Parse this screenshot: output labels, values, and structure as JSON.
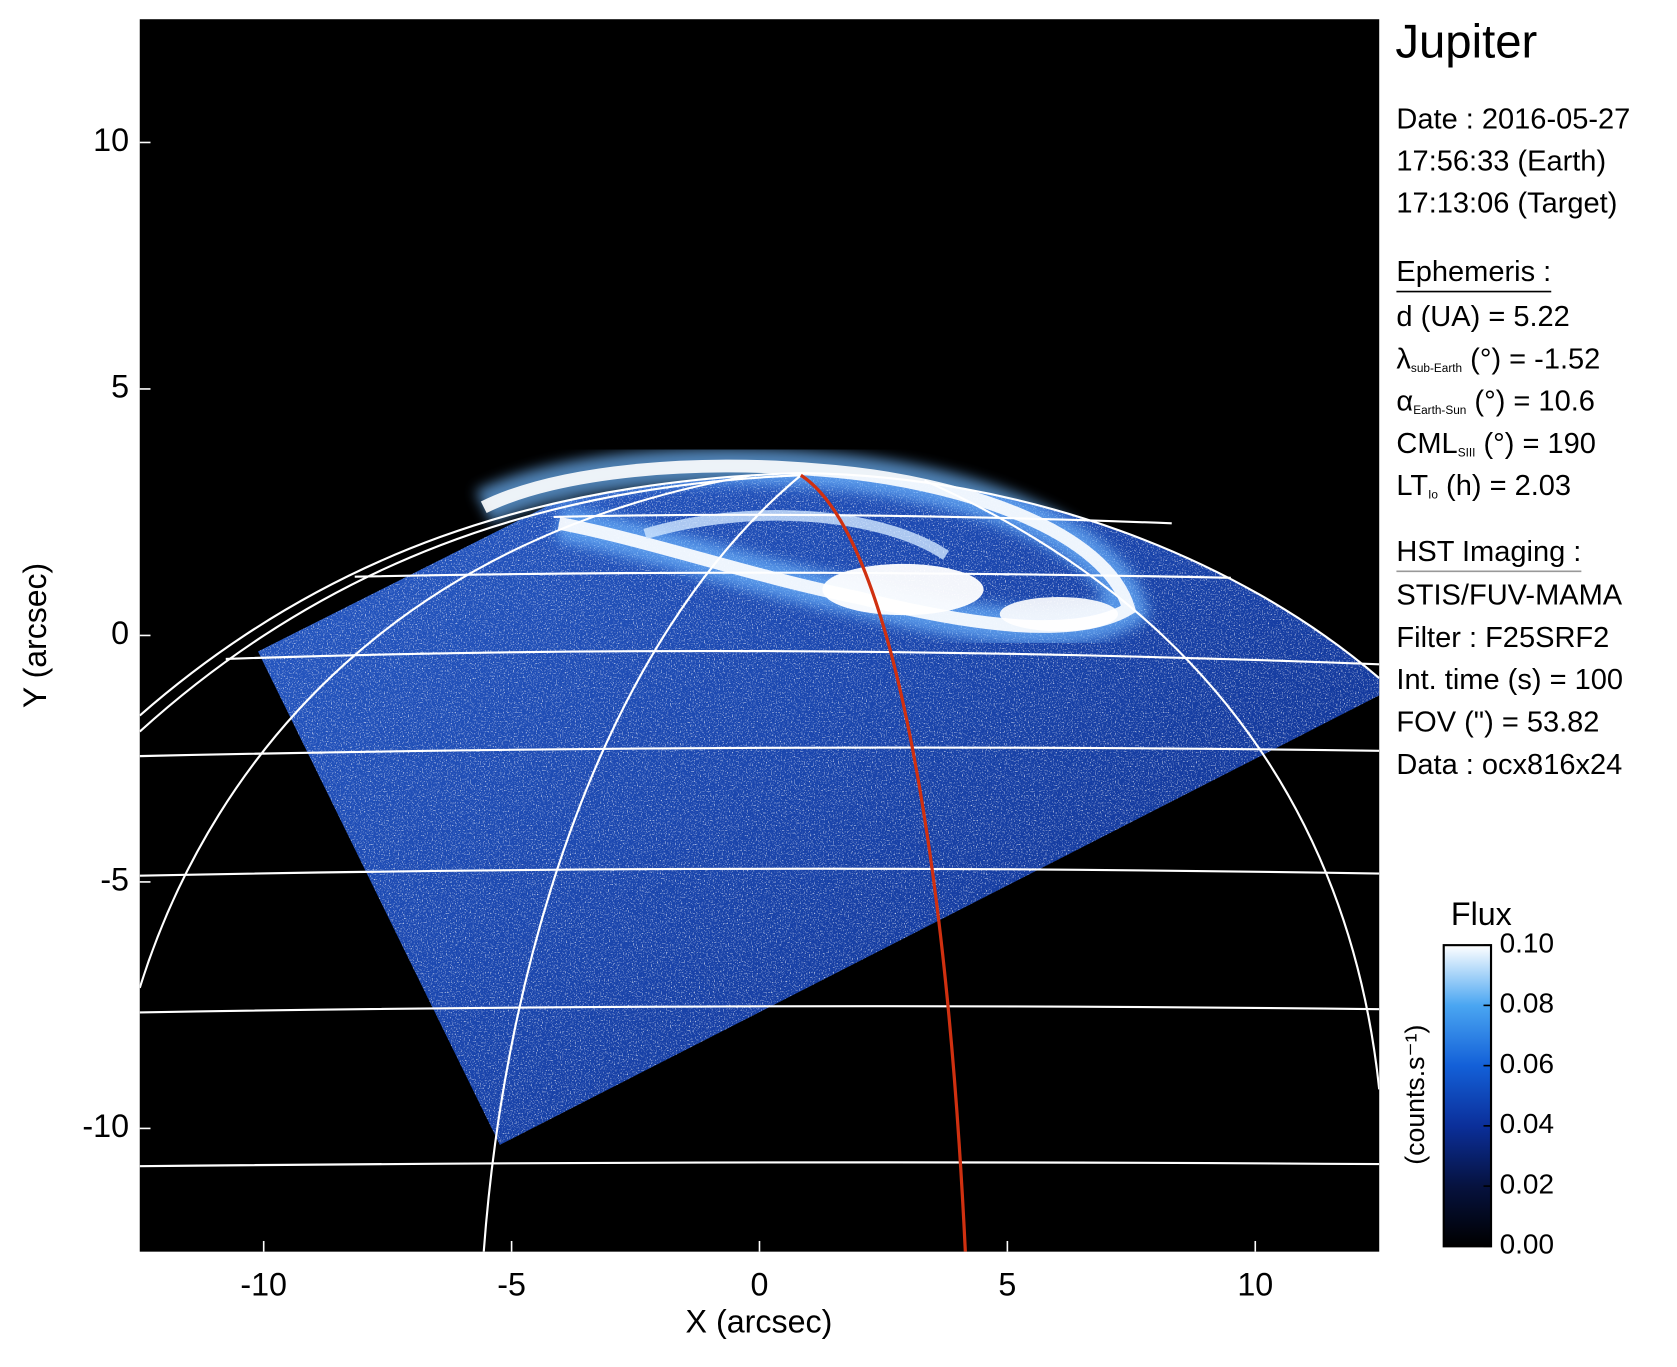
{
  "chart_data": {
    "type": "image",
    "x_label": "X (arcsec)",
    "y_label": "Y (arcsec)",
    "xlim": [
      -12.5,
      12.5
    ],
    "ylim": [
      -12.5,
      12.5
    ],
    "xticks": [
      -10,
      -5,
      0,
      5,
      10
    ],
    "yticks": [
      -10,
      -5,
      0,
      5,
      10
    ],
    "colorbar": {
      "title": "Flux",
      "label": "(counts.s⁻¹)",
      "lim": [
        0,
        0.1
      ],
      "ticks": [
        {
          "value": 0,
          "label": "0.00"
        },
        {
          "value": 0.02,
          "label": "0.02"
        },
        {
          "value": 0.04,
          "label": "0.04"
        },
        {
          "value": 0.06,
          "label": "0.06"
        },
        {
          "value": 0.08,
          "label": "0.08"
        },
        {
          "value": 0.1,
          "label": "0.10"
        }
      ]
    },
    "panel": {
      "title": "Jupiter",
      "date": [
        "Date : 2016-05-27",
        "17:56:33 (Earth)",
        "17:13:06 (Target)"
      ],
      "ephemeris_heading": "Ephemeris :",
      "ephemeris": [
        {
          "text": "d (UA)    = 5.22"
        },
        {
          "symbol": "λ",
          "sub": "sub-Earth",
          "text": " (°) = -1.52"
        },
        {
          "symbol": "α",
          "sub": "Earth-Sun",
          "text": " (°) = 10.6"
        },
        {
          "symbol": "CML",
          "sub": "SIII",
          "text": " (°) = 190"
        },
        {
          "symbol": "LT",
          "sub": "Io",
          "text": " (h) = 2.03"
        }
      ],
      "imaging_heading": "HST Imaging :",
      "imaging": [
        "STIS/FUV-MAMA",
        "Filter : F25SRF2",
        "Int. time (s) = 100",
        "FOV (\") = 53.82",
        "Data : ocx816x24"
      ]
    }
  }
}
